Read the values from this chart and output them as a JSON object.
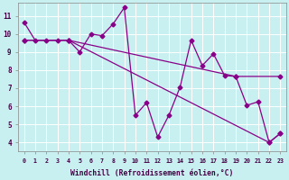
{
  "title": "",
  "xlabel": "Windchill (Refroidissement éolien,°C)",
  "ylabel": "",
  "background_color": "#c8f0f0",
  "grid_color": "#ffffff",
  "line_color": "#880088",
  "xlim": [
    -0.5,
    23.5
  ],
  "ylim": [
    3.5,
    11.7
  ],
  "xtick_labels": [
    "0",
    "1",
    "2",
    "3",
    "4",
    "5",
    "6",
    "7",
    "8",
    "9",
    "10",
    "11",
    "12",
    "13",
    "14",
    "15",
    "16",
    "17",
    "18",
    "19",
    "20",
    "21",
    "22",
    "23"
  ],
  "ytick_values": [
    4,
    5,
    6,
    7,
    8,
    9,
    10,
    11
  ],
  "series1_x": [
    0,
    1,
    2,
    3,
    4,
    5,
    6,
    7,
    8,
    9,
    10,
    11,
    12,
    13,
    14,
    15,
    16,
    17,
    18,
    19,
    20,
    21,
    22,
    23
  ],
  "series1_y": [
    10.65,
    9.65,
    9.65,
    9.65,
    9.65,
    9.0,
    10.0,
    9.9,
    10.55,
    11.45,
    5.5,
    6.2,
    4.3,
    5.5,
    7.05,
    9.65,
    8.25,
    8.9,
    7.7,
    7.65,
    6.05,
    6.25,
    4.0,
    4.5
  ],
  "series2_x": [
    0,
    4,
    19,
    23
  ],
  "series2_y": [
    9.65,
    9.65,
    7.65,
    7.65
  ],
  "series3_x": [
    0,
    4,
    22,
    23
  ],
  "series3_y": [
    9.65,
    9.65,
    4.0,
    4.5
  ],
  "marker_size": 2.5,
  "linewidth": 0.9
}
